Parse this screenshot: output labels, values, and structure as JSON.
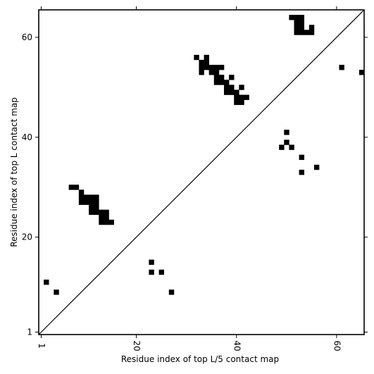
{
  "chart_data": {
    "type": "heatmap",
    "xlabel": "Residue index of top L/5 contact map",
    "ylabel": "Residue index of top L contact map",
    "xlim": [
      0.5,
      65.5
    ],
    "ylim": [
      0.5,
      65.5
    ],
    "x_ticks": [
      1,
      20,
      40,
      60
    ],
    "y_ticks": [
      1,
      20,
      40,
      60
    ],
    "diagonal": true,
    "cell_color": "#000000",
    "lower_cells": [
      [
        2,
        11
      ],
      [
        4,
        9
      ],
      [
        23,
        15
      ],
      [
        23,
        13
      ],
      [
        25,
        13
      ],
      [
        27,
        9
      ],
      [
        50,
        41
      ],
      [
        49,
        38
      ],
      [
        50,
        39
      ],
      [
        51,
        38
      ],
      [
        53,
        36
      ],
      [
        53,
        33
      ],
      [
        56,
        34
      ],
      [
        61,
        54
      ],
      [
        65,
        53
      ]
    ],
    "upper_cells": [
      [
        7,
        30
      ],
      [
        8,
        30
      ],
      [
        9,
        29
      ],
      [
        9,
        28
      ],
      [
        10,
        28
      ],
      [
        11,
        28
      ],
      [
        12,
        28
      ],
      [
        9,
        27
      ],
      [
        10,
        27
      ],
      [
        11,
        27
      ],
      [
        12,
        27
      ],
      [
        11,
        26
      ],
      [
        12,
        26
      ],
      [
        11,
        25
      ],
      [
        12,
        25
      ],
      [
        13,
        25
      ],
      [
        14,
        25
      ],
      [
        13,
        24
      ],
      [
        14,
        24
      ],
      [
        13,
        23
      ],
      [
        14,
        23
      ],
      [
        15,
        23
      ],
      [
        32,
        56
      ],
      [
        34,
        56
      ],
      [
        33,
        55
      ],
      [
        34,
        55
      ],
      [
        33,
        54
      ],
      [
        34,
        54
      ],
      [
        35,
        54
      ],
      [
        36,
        54
      ],
      [
        37,
        54
      ],
      [
        33,
        53
      ],
      [
        35,
        53
      ],
      [
        36,
        53
      ],
      [
        36,
        52
      ],
      [
        37,
        52
      ],
      [
        39,
        52
      ],
      [
        36,
        51
      ],
      [
        37,
        51
      ],
      [
        38,
        51
      ],
      [
        38,
        50
      ],
      [
        39,
        50
      ],
      [
        41,
        50
      ],
      [
        38,
        49
      ],
      [
        39,
        49
      ],
      [
        40,
        49
      ],
      [
        40,
        48
      ],
      [
        41,
        48
      ],
      [
        42,
        48
      ],
      [
        40,
        47
      ],
      [
        41,
        47
      ],
      [
        51,
        64
      ],
      [
        52,
        64
      ],
      [
        53,
        64
      ],
      [
        52,
        63
      ],
      [
        53,
        63
      ],
      [
        52,
        62
      ],
      [
        53,
        62
      ],
      [
        55,
        62
      ],
      [
        52,
        61
      ],
      [
        53,
        61
      ],
      [
        54,
        61
      ],
      [
        55,
        61
      ]
    ]
  }
}
